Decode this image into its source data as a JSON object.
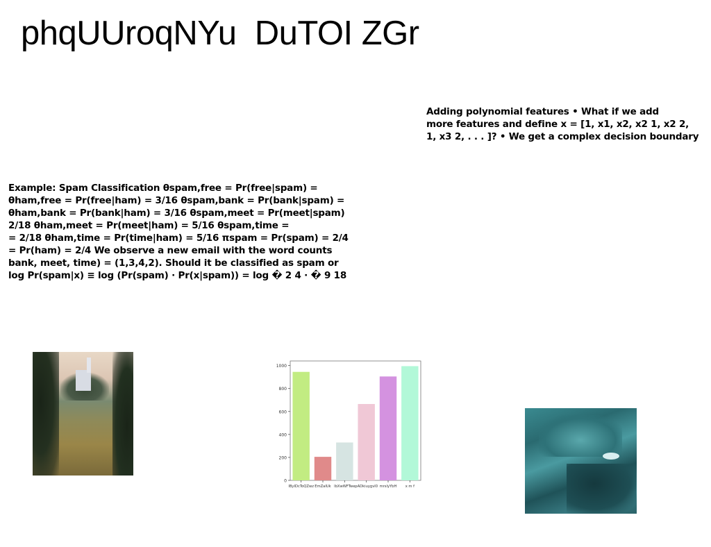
{
  "slide": {
    "title": "phqUUroqNYu  DuTOI ZGr",
    "text_right": "Adding polynomial features • What if we add\nmore features and define x = [1, x1, x2, x2 1, x2 2,\n1, x3 2, . . . ]? • We get a complex decision boundary",
    "text_left": "Example: Spam Classification θspam,free = Pr(free|spam) =\nθham,free = Pr(free|ham) = 3/16 θspam,bank = Pr(bank|spam) =\nθham,bank = Pr(bank|ham) = 3/16 θspam,meet = Pr(meet|spam)\n2/18 θham,meet = Pr(meet|ham) = 5/16 θspam,time =\n= 2/18 θham,time = Pr(time|ham) = 5/16 πspam = Pr(spam) = 2/4\n= Pr(ham) = 2/4 We observe a new email with the word counts\nbank, meet, time) = (1,3,4,2). Should it be classified as spam or\nlog Pr(spam|x) ≡ log (Pr(spam) · Pr(x|spam)) = log � 2 4 · � 9 18"
  },
  "images": {
    "lake": "lake-castle-photo",
    "rock": "teal-rock-photo"
  },
  "chart_data": {
    "type": "bar",
    "categories": [
      "lByIDcToQZwz",
      "EmZaIUk",
      "lbXwWFTwe",
      "pADkiuygvl0",
      "mrslyYbH",
      "x m f"
    ],
    "values": [
      945,
      205,
      330,
      665,
      905,
      995
    ],
    "colors": [
      "#c2ec82",
      "#e08a8a",
      "#d6e4e2",
      "#f0c8d6",
      "#d492e0",
      "#b2f8d8"
    ],
    "yticks": [
      0,
      200,
      400,
      600,
      800,
      1000
    ],
    "ylim": [
      0,
      1040
    ],
    "grid": false,
    "title": "",
    "xlabel": "",
    "ylabel": ""
  }
}
